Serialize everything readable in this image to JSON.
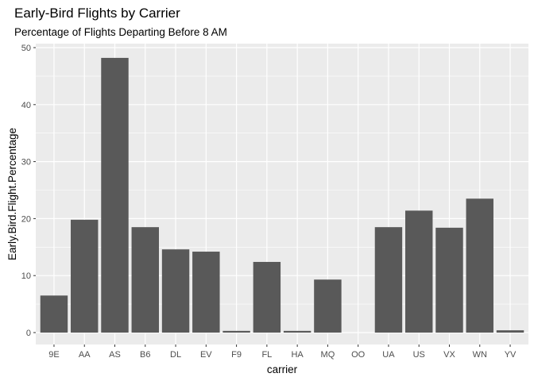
{
  "chart_data": {
    "type": "bar",
    "title": "Early-Bird Flights by Carrier",
    "subtitle": "Percentage of Flights Departing Before 8 AM",
    "xlabel": "carrier",
    "ylabel": "Early.Bird.Flight.Percentage",
    "categories": [
      "9E",
      "AA",
      "AS",
      "B6",
      "DL",
      "EV",
      "F9",
      "FL",
      "HA",
      "MQ",
      "OO",
      "UA",
      "US",
      "VX",
      "WN",
      "YV"
    ],
    "values": [
      6.5,
      19.8,
      48.2,
      18.5,
      14.6,
      14.2,
      0.3,
      12.4,
      0.3,
      9.3,
      0,
      18.5,
      21.4,
      18.4,
      23.5,
      0.4
    ],
    "ylim": [
      0,
      50
    ],
    "yticks": [
      0,
      10,
      20,
      30,
      40,
      50
    ],
    "grid": true,
    "legend": "none",
    "colors": {
      "bar": "#595959",
      "panel": "#ebebeb",
      "grid": "#ffffff"
    }
  }
}
